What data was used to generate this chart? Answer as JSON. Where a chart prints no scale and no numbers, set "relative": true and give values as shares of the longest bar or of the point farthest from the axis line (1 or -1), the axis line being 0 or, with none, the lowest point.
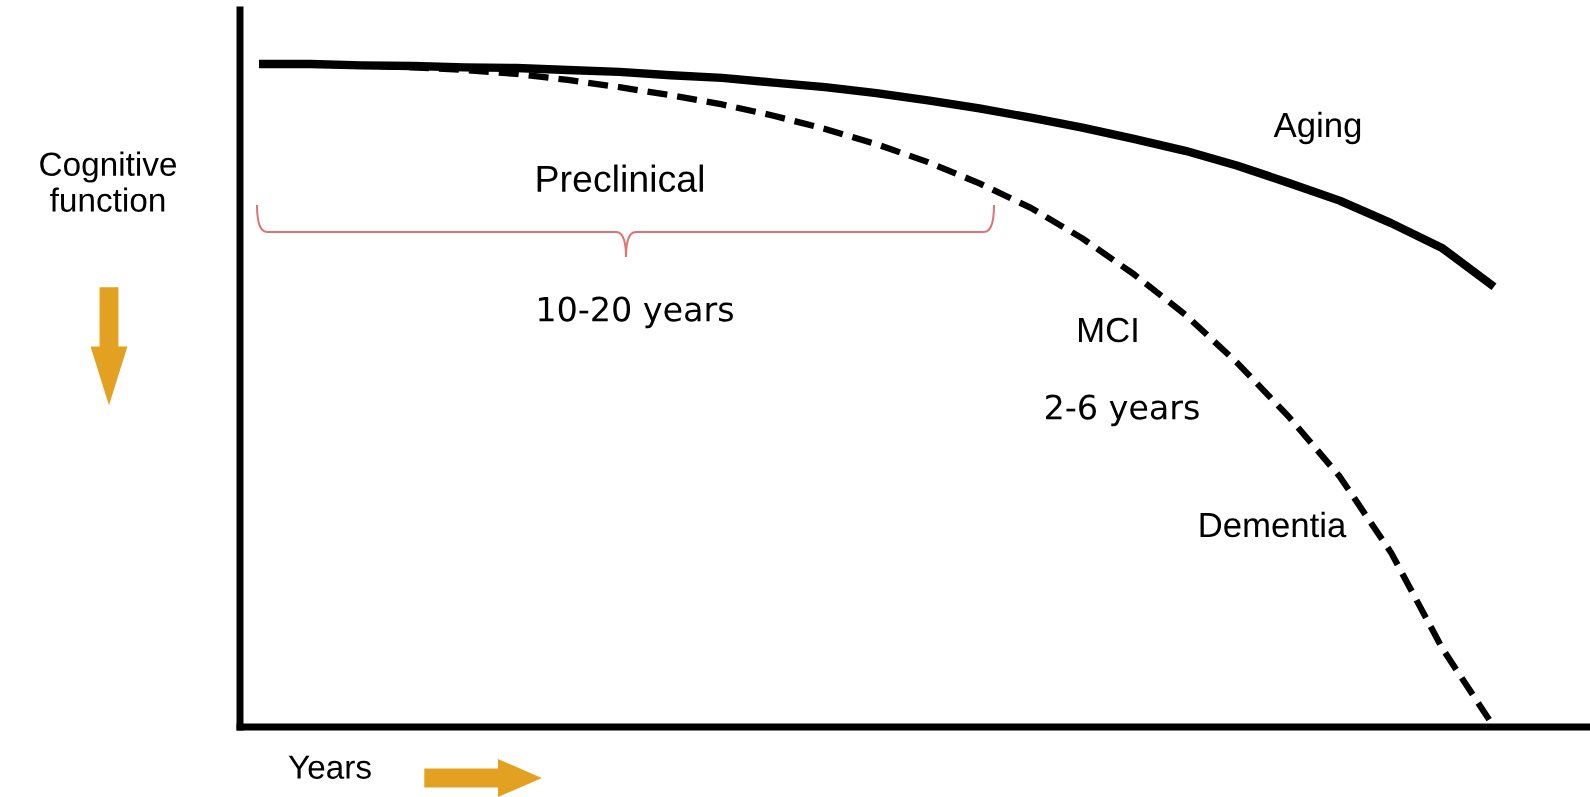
{
  "chart_data": {
    "type": "line",
    "relative": true,
    "xlabel": "Years",
    "ylabel": "Cognitive function",
    "categories": [
      null,
      null,
      null,
      null,
      null,
      null,
      null,
      null,
      null,
      null,
      null,
      null,
      null,
      null,
      null,
      null,
      null,
      null,
      null,
      null,
      null,
      null,
      null,
      null,
      null
    ],
    "series": [
      {
        "name": "Aging",
        "color": "#000000",
        "line_style": "solid",
        "values": [
          1.0,
          1.0,
          0.998,
          0.997,
          0.995,
          0.994,
          0.991,
          0.988,
          0.983,
          0.979,
          0.972,
          0.965,
          0.956,
          0.945,
          0.933,
          0.919,
          0.904,
          0.887,
          0.869,
          0.847,
          0.821,
          0.794,
          0.76,
          0.722,
          0.664
        ]
      },
      {
        "name": "Dementia",
        "color": "#000000",
        "line_style": "dashed",
        "values": [
          1.0,
          1.0,
          0.998,
          0.995,
          0.991,
          0.985,
          0.976,
          0.965,
          0.953,
          0.939,
          0.922,
          0.902,
          0.879,
          0.852,
          0.82,
          0.783,
          0.737,
          0.683,
          0.622,
          0.55,
          0.469,
          0.378,
          0.263,
          0.118,
          0.0
        ]
      }
    ],
    "annotations": [
      "Preclinical",
      "10-20 years",
      "MCI",
      "2-6 years"
    ],
    "grid": false,
    "legend": false,
    "marker": "none"
  }
}
